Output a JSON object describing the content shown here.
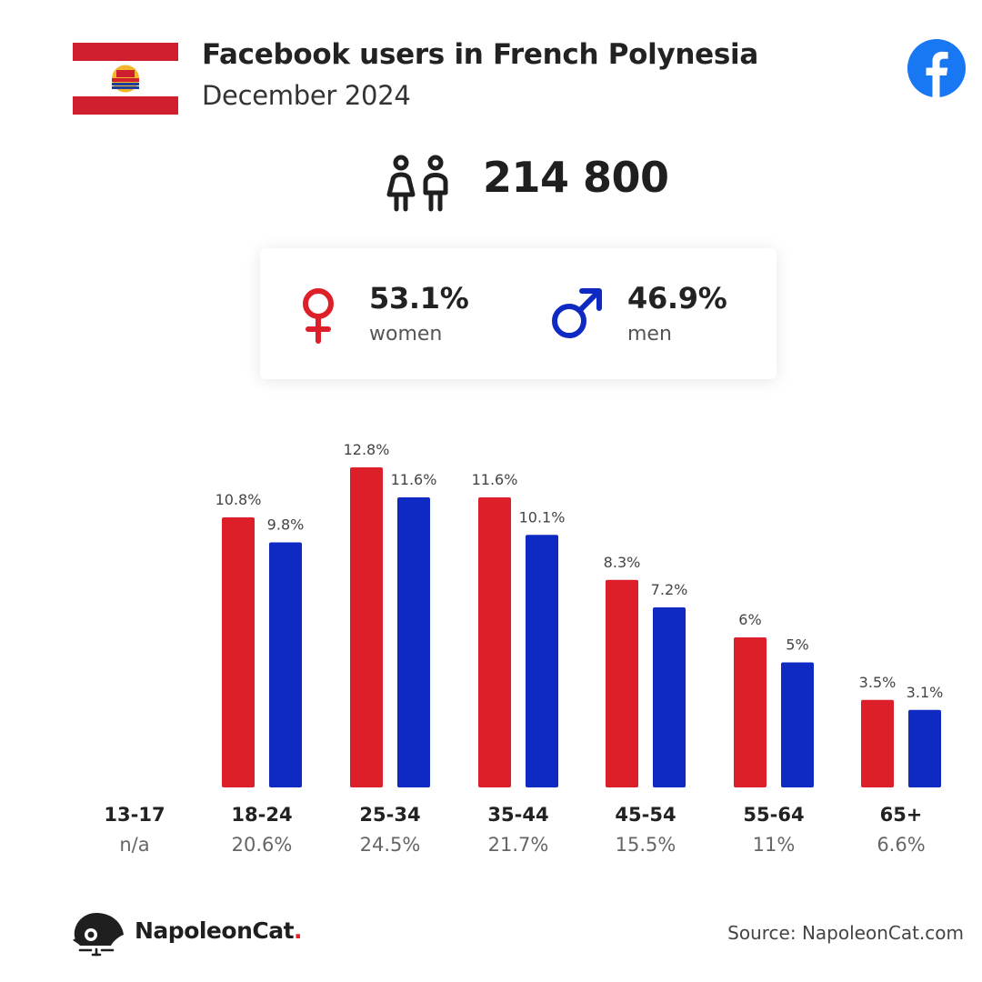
{
  "header": {
    "title": "Facebook users in French Polynesia",
    "subtitle": "December 2024"
  },
  "colors": {
    "women": "#dd1f2a",
    "men": "#0f2ac3",
    "flag_red": "#cf1f2e",
    "facebook_blue": "#1877f2"
  },
  "icons": {
    "flag": "french-polynesia-flag-icon",
    "facebook": "facebook-logo-icon",
    "users": "users-icon",
    "women": "venus-icon",
    "men": "mars-icon",
    "brand": "napoleoncat-logo-icon"
  },
  "total_users": "214 800",
  "gender": {
    "women": {
      "pct": "53.1%",
      "label": "women"
    },
    "men": {
      "pct": "46.9%",
      "label": "men"
    }
  },
  "chart_data": {
    "type": "bar",
    "categories": [
      "13-17",
      "18-24",
      "25-34",
      "35-44",
      "45-54",
      "55-64",
      "65+"
    ],
    "category_shares": [
      "n/a",
      "20.6%",
      "24.5%",
      "21.7%",
      "15.5%",
      "11%",
      "6.6%"
    ],
    "series": [
      {
        "values": [
          null,
          10.8,
          12.8,
          11.6,
          8.3,
          6,
          3.5
        ],
        "labels": [
          "",
          "10.8%",
          "12.8%",
          "11.6%",
          "8.3%",
          "6%",
          "3.5%"
        ],
        "color": "#dd1f2a"
      },
      {
        "values": [
          null,
          9.8,
          11.6,
          10.1,
          7.2,
          5,
          3.1
        ],
        "labels": [
          "",
          "9.8%",
          "11.6%",
          "10.1%",
          "7.2%",
          "5%",
          "3.1%"
        ],
        "color": "#0f2ac3"
      }
    ],
    "ylim": [
      0,
      12.8
    ],
    "grid": false,
    "legend": "none"
  },
  "footer": {
    "brand": "NapoleonCat",
    "brand_dot": ".",
    "source": "Source: NapoleonCat.com"
  }
}
